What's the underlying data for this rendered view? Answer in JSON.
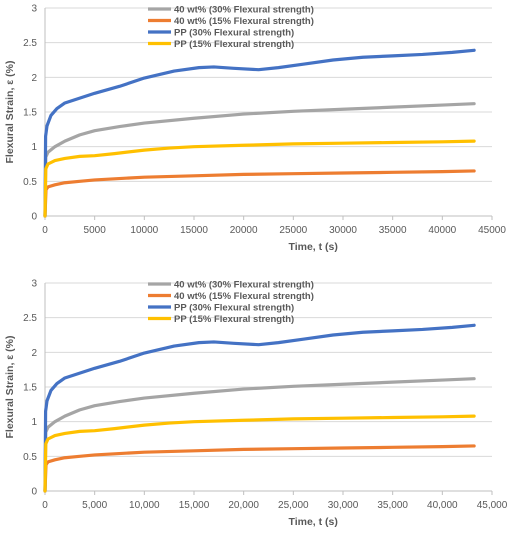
{
  "chart_data": [
    {
      "type": "line",
      "xlabel": "Time, t (s)",
      "ylabel": "Flexural Strain, ε (%)",
      "xlim": [
        0,
        45000
      ],
      "ylim": [
        0,
        3
      ],
      "x_ticks": [
        "0",
        "5000",
        "10000",
        "15000",
        "20000",
        "25000",
        "30000",
        "35000",
        "40000",
        "45000"
      ],
      "y_ticks": [
        "0",
        "0.5",
        "1",
        "1.5",
        "2",
        "2.5",
        "3"
      ],
      "grid": "horizontal",
      "legend_position": "top-center",
      "series": [
        {
          "name": "40 wt% (30% Flexural strength)",
          "color": "#a5a5a5",
          "points": [
            [
              0,
              0
            ],
            [
              80,
              0.85
            ],
            [
              300,
              0.92
            ],
            [
              1000,
              1.0
            ],
            [
              2000,
              1.08
            ],
            [
              3500,
              1.17
            ],
            [
              5000,
              1.23
            ],
            [
              7500,
              1.29
            ],
            [
              10000,
              1.34
            ],
            [
              15000,
              1.41
            ],
            [
              20000,
              1.47
            ],
            [
              25000,
              1.51
            ],
            [
              30000,
              1.54
            ],
            [
              35000,
              1.57
            ],
            [
              40000,
              1.6
            ],
            [
              43200,
              1.62
            ]
          ]
        },
        {
          "name": "40 wt% (15% Flexural strength)",
          "color": "#ed7d31",
          "points": [
            [
              0,
              0
            ],
            [
              100,
              0.38
            ],
            [
              300,
              0.42
            ],
            [
              1000,
              0.45
            ],
            [
              2000,
              0.48
            ],
            [
              3500,
              0.5
            ],
            [
              5000,
              0.52
            ],
            [
              10000,
              0.56
            ],
            [
              15000,
              0.58
            ],
            [
              20000,
              0.6
            ],
            [
              25000,
              0.61
            ],
            [
              30000,
              0.62
            ],
            [
              35000,
              0.63
            ],
            [
              40000,
              0.64
            ],
            [
              43200,
              0.65
            ]
          ]
        },
        {
          "name": "PP (30% Flexural strength)",
          "color": "#4472c4",
          "points": [
            [
              0,
              0
            ],
            [
              60,
              1.15
            ],
            [
              200,
              1.3
            ],
            [
              600,
              1.45
            ],
            [
              1200,
              1.55
            ],
            [
              2000,
              1.63
            ],
            [
              3500,
              1.7
            ],
            [
              5000,
              1.77
            ],
            [
              7500,
              1.87
            ],
            [
              10000,
              1.99
            ],
            [
              13000,
              2.09
            ],
            [
              15500,
              2.14
            ],
            [
              17000,
              2.15
            ],
            [
              19000,
              2.13
            ],
            [
              21500,
              2.11
            ],
            [
              23500,
              2.14
            ],
            [
              26000,
              2.19
            ],
            [
              29000,
              2.25
            ],
            [
              32000,
              2.29
            ],
            [
              35000,
              2.31
            ],
            [
              38000,
              2.33
            ],
            [
              41000,
              2.36
            ],
            [
              43200,
              2.39
            ]
          ]
        },
        {
          "name": "PP (15% Flexural strength)",
          "color": "#ffc000",
          "points": [
            [
              0,
              0
            ],
            [
              80,
              0.68
            ],
            [
              300,
              0.75
            ],
            [
              1000,
              0.8
            ],
            [
              2000,
              0.83
            ],
            [
              3500,
              0.86
            ],
            [
              5000,
              0.87
            ],
            [
              7000,
              0.9
            ],
            [
              10000,
              0.95
            ],
            [
              12500,
              0.98
            ],
            [
              15000,
              1.0
            ],
            [
              20000,
              1.02
            ],
            [
              25000,
              1.04
            ],
            [
              30000,
              1.05
            ],
            [
              35000,
              1.06
            ],
            [
              40000,
              1.07
            ],
            [
              43200,
              1.08
            ]
          ]
        }
      ]
    },
    {
      "type": "line",
      "xlabel": "Time, t (s)",
      "ylabel": "Flexural Strain, ε (%)",
      "xlim": [
        0,
        45000
      ],
      "ylim": [
        0,
        3
      ],
      "x_ticks": [
        "0",
        "5,000",
        "10,000",
        "15,000",
        "20,000",
        "25,000",
        "30,000",
        "35,000",
        "40,000",
        "45,000"
      ],
      "y_ticks": [
        "0",
        "0.5",
        "1",
        "1.5",
        "2",
        "2.5",
        "3"
      ],
      "grid": "horizontal",
      "legend_position": "top-center",
      "series": [
        {
          "name": "40 wt% (30% Flexural strength)",
          "color": "#a5a5a5",
          "points": [
            [
              0,
              0
            ],
            [
              80,
              0.85
            ],
            [
              300,
              0.92
            ],
            [
              1000,
              1.0
            ],
            [
              2000,
              1.08
            ],
            [
              3500,
              1.17
            ],
            [
              5000,
              1.23
            ],
            [
              7500,
              1.29
            ],
            [
              10000,
              1.34
            ],
            [
              15000,
              1.41
            ],
            [
              20000,
              1.47
            ],
            [
              25000,
              1.51
            ],
            [
              30000,
              1.54
            ],
            [
              35000,
              1.57
            ],
            [
              40000,
              1.6
            ],
            [
              43200,
              1.62
            ]
          ]
        },
        {
          "name": "40 wt% (15% Flexural strength)",
          "color": "#ed7d31",
          "points": [
            [
              0,
              0
            ],
            [
              100,
              0.38
            ],
            [
              300,
              0.42
            ],
            [
              1000,
              0.45
            ],
            [
              2000,
              0.48
            ],
            [
              3500,
              0.5
            ],
            [
              5000,
              0.52
            ],
            [
              10000,
              0.56
            ],
            [
              15000,
              0.58
            ],
            [
              20000,
              0.6
            ],
            [
              25000,
              0.61
            ],
            [
              30000,
              0.62
            ],
            [
              35000,
              0.63
            ],
            [
              40000,
              0.64
            ],
            [
              43200,
              0.65
            ]
          ]
        },
        {
          "name": "PP (30% Flexural strength)",
          "color": "#4472c4",
          "points": [
            [
              0,
              0
            ],
            [
              60,
              1.15
            ],
            [
              200,
              1.3
            ],
            [
              600,
              1.45
            ],
            [
              1200,
              1.55
            ],
            [
              2000,
              1.63
            ],
            [
              3500,
              1.7
            ],
            [
              5000,
              1.77
            ],
            [
              7500,
              1.87
            ],
            [
              10000,
              1.99
            ],
            [
              13000,
              2.09
            ],
            [
              15500,
              2.14
            ],
            [
              17000,
              2.15
            ],
            [
              19000,
              2.13
            ],
            [
              21500,
              2.11
            ],
            [
              23500,
              2.14
            ],
            [
              26000,
              2.19
            ],
            [
              29000,
              2.25
            ],
            [
              32000,
              2.29
            ],
            [
              35000,
              2.31
            ],
            [
              38000,
              2.33
            ],
            [
              41000,
              2.36
            ],
            [
              43200,
              2.39
            ]
          ]
        },
        {
          "name": "PP (15% Flexural strength)",
          "color": "#ffc000",
          "points": [
            [
              0,
              0
            ],
            [
              80,
              0.68
            ],
            [
              300,
              0.75
            ],
            [
              1000,
              0.8
            ],
            [
              2000,
              0.83
            ],
            [
              3500,
              0.86
            ],
            [
              5000,
              0.87
            ],
            [
              7000,
              0.9
            ],
            [
              10000,
              0.95
            ],
            [
              12500,
              0.98
            ],
            [
              15000,
              1.0
            ],
            [
              20000,
              1.02
            ],
            [
              25000,
              1.04
            ],
            [
              30000,
              1.05
            ],
            [
              35000,
              1.06
            ],
            [
              40000,
              1.07
            ],
            [
              43200,
              1.08
            ]
          ]
        }
      ]
    }
  ]
}
